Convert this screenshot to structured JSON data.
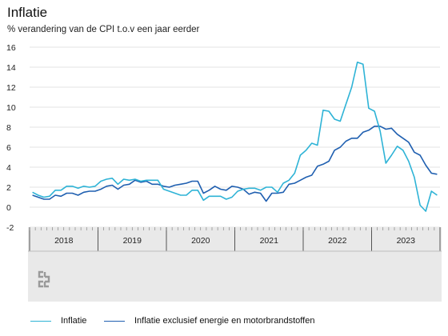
{
  "title": "Inflatie",
  "subtitle": "% verandering van de CPI t.o.v een jaar eerder",
  "colors": {
    "inflatie": "#2eb3d6",
    "inflatie_excl": "#1f5fb0",
    "axis_band": "#e9e9e9",
    "grid": "#e3e3e3",
    "logo": "#9a9a9a"
  },
  "logo_icon": "cbs-logo-icon",
  "legend": [
    {
      "label": "Inflatie",
      "color": "#2eb3d6"
    },
    {
      "label": "Inflatie exclusief energie en motorbrandstoffen",
      "color": "#1f5fb0"
    }
  ],
  "chart_data": {
    "type": "line",
    "title": "Inflatie",
    "subtitle": "% verandering van de CPI t.o.v een jaar eerder",
    "ylim": [
      -2,
      16
    ],
    "yticks": [
      -2,
      0,
      2,
      4,
      6,
      8,
      10,
      12,
      14,
      16
    ],
    "xrange": [
      "2017-12",
      "2023-12"
    ],
    "xtick_labels": [
      "2018",
      "2019",
      "2020",
      "2021",
      "2022",
      "2023"
    ],
    "grid": true,
    "legend_position": "bottom",
    "x": [
      "2018-01",
      "2018-02",
      "2018-03",
      "2018-04",
      "2018-05",
      "2018-06",
      "2018-07",
      "2018-08",
      "2018-09",
      "2018-10",
      "2018-11",
      "2018-12",
      "2019-01",
      "2019-02",
      "2019-03",
      "2019-04",
      "2019-05",
      "2019-06",
      "2019-07",
      "2019-08",
      "2019-09",
      "2019-10",
      "2019-11",
      "2019-12",
      "2020-01",
      "2020-02",
      "2020-03",
      "2020-04",
      "2020-05",
      "2020-06",
      "2020-07",
      "2020-08",
      "2020-09",
      "2020-10",
      "2020-11",
      "2020-12",
      "2021-01",
      "2021-02",
      "2021-03",
      "2021-04",
      "2021-05",
      "2021-06",
      "2021-07",
      "2021-08",
      "2021-09",
      "2021-10",
      "2021-11",
      "2021-12",
      "2022-01",
      "2022-02",
      "2022-03",
      "2022-04",
      "2022-05",
      "2022-06",
      "2022-07",
      "2022-08",
      "2022-09",
      "2022-10",
      "2022-11",
      "2022-12",
      "2023-01",
      "2023-02",
      "2023-03",
      "2023-04",
      "2023-05",
      "2023-06",
      "2023-07",
      "2023-08",
      "2023-09",
      "2023-10",
      "2023-11",
      "2023-12"
    ],
    "series": [
      {
        "name": "Inflatie",
        "values": [
          1.5,
          1.2,
          1.0,
          1.1,
          1.7,
          1.7,
          2.1,
          2.1,
          1.9,
          2.1,
          2.0,
          2.1,
          2.6,
          2.8,
          2.9,
          2.3,
          2.8,
          2.7,
          2.8,
          2.6,
          2.7,
          2.7,
          2.7,
          1.8,
          1.6,
          1.4,
          1.2,
          1.2,
          1.7,
          1.7,
          0.7,
          1.1,
          1.1,
          1.1,
          0.8,
          1.0,
          1.6,
          1.8,
          1.9,
          1.9,
          1.7,
          2.0,
          2.0,
          1.5,
          2.4,
          2.7,
          3.4,
          5.2,
          5.7,
          6.4,
          6.2,
          9.7,
          9.6,
          8.8,
          8.6,
          10.3,
          12.0,
          14.5,
          14.3,
          9.9,
          9.6,
          7.6,
          4.4,
          5.2,
          6.1,
          5.7,
          4.6,
          3.0,
          0.2,
          -0.4,
          1.6,
          1.2
        ]
      },
      {
        "name": "Inflatie exclusief energie en motorbrandstoffen",
        "values": [
          1.2,
          1.0,
          0.8,
          0.8,
          1.2,
          1.1,
          1.4,
          1.4,
          1.2,
          1.5,
          1.6,
          1.6,
          1.8,
          2.1,
          2.2,
          1.8,
          2.2,
          2.3,
          2.7,
          2.5,
          2.6,
          2.3,
          2.3,
          2.1,
          2.0,
          2.2,
          2.3,
          2.4,
          2.6,
          2.6,
          1.4,
          1.7,
          2.1,
          1.8,
          1.7,
          2.1,
          2.0,
          1.8,
          1.3,
          1.5,
          1.4,
          0.6,
          1.4,
          1.4,
          1.5,
          2.3,
          2.4,
          2.7,
          3.0,
          3.2,
          4.1,
          4.3,
          4.6,
          5.7,
          6.0,
          6.6,
          6.9,
          6.9,
          7.5,
          7.7,
          8.1,
          8.1,
          7.8,
          7.9,
          7.3,
          6.9,
          6.5,
          5.5,
          5.2,
          4.2,
          3.4,
          3.3
        ]
      }
    ]
  }
}
